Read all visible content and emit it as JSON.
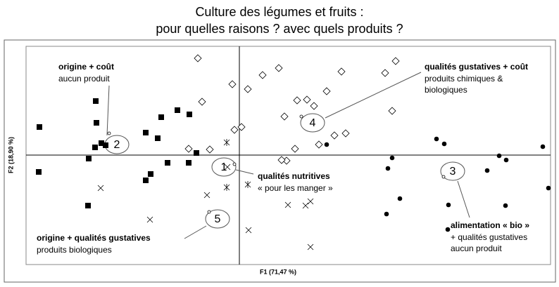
{
  "chart_data": {
    "type": "scatter",
    "title": [
      "Culture des légumes et fruits :",
      "pour quelles raisons ? avec quels produits ?"
    ],
    "xlabel": "F1 (71,47 %)",
    "ylabel": "F2 (18,90 %)",
    "xlim": [
      -30.3,
      44.2
    ],
    "ylim": [
      -15.6,
      15.5
    ],
    "series": [
      {
        "marker": "square",
        "color": "#000000",
        "x": [
          -28.4,
          -28.5,
          -20.4,
          -20.3,
          -20.5,
          -21.4,
          -19.6,
          -19,
          -13.3,
          -11.1,
          -8.8,
          -7.1,
          -11.6,
          -12.6,
          -13.3,
          -10.2,
          -7.2,
          -6.1,
          -21.5
        ],
        "values": [
          4.0,
          -2.4,
          7.7,
          4.6,
          1.1,
          -0.5,
          1.7,
          1.4,
          3.2,
          5.4,
          6.4,
          5.8,
          2.4,
          -2.7,
          -3.6,
          -1.1,
          -1.1,
          0.3,
          -7.2
        ]
      },
      {
        "marker": "diamond-open",
        "color": "#000000",
        "x": [
          -5.9,
          -5.3,
          -7.2,
          -4.2,
          -1,
          -0.7,
          0.3,
          1.2,
          3.3,
          5.6,
          8.2,
          6.4,
          7.9,
          6.7,
          6,
          9.6,
          10.6,
          11.3,
          13.5,
          15.1,
          12.4,
          14.5,
          20.7,
          22.2,
          21.7
        ],
        "values": [
          13.8,
          7.6,
          0.9,
          0.8,
          10.1,
          3.6,
          4.0,
          9.4,
          11.4,
          12.4,
          7.8,
          5.5,
          0.9,
          -0.8,
          -0.7,
          7.9,
          7.0,
          1.5,
          2.8,
          3.1,
          9.1,
          11.9,
          11.7,
          13.4,
          6.3
        ]
      },
      {
        "marker": "circle",
        "color": "#000000",
        "x": [
          12.4,
          21.7,
          21.1,
          28,
          29.1,
          35.2,
          36.9,
          37.9,
          43.1,
          43.9,
          37.8,
          29.7,
          29.6,
          22.8,
          20.9
        ],
        "values": [
          1.5,
          -0.4,
          -1.9,
          2.3,
          1.6,
          -2.2,
          -0.1,
          -0.7,
          1.2,
          -4.7,
          -7.2,
          -7.1,
          -10.6,
          -6.2,
          -8.4
        ]
      },
      {
        "marker": "x",
        "color": "#000000",
        "x": [
          -19.7,
          -12.7,
          -4.6,
          -1.7,
          1.3,
          6.9,
          9.4,
          10.1,
          10.1
        ],
        "values": [
          -4.7,
          -9.2,
          -5.7,
          -1.7,
          -10.7,
          -7.1,
          -7.2,
          -6.6,
          -13.1
        ]
      },
      {
        "marker": "asterisk",
        "color": "#000000",
        "x": [
          -1.8,
          -1.8,
          1.2
        ],
        "values": [
          1.8,
          -4.6,
          -4.2
        ]
      },
      {
        "marker": "circle-open",
        "color": "#000000",
        "x": [
          -18.5,
          -0.7,
          29,
          8.8,
          -4.3
        ],
        "values": [
          3.1,
          -1.3,
          -3.1,
          5.5,
          -8.1
        ]
      }
    ],
    "annotations": [
      {
        "number": "2",
        "title": "origine + coût",
        "lines": [
          "aucun produit"
        ]
      },
      {
        "number": "1",
        "title": "qualités nutritives",
        "lines": [
          "« pour les manger »"
        ]
      },
      {
        "number": "3",
        "title": "alimentation « bio »",
        "lines": [
          "+ qualités gustatives",
          "aucun produit"
        ]
      },
      {
        "number": "4",
        "title": "qualités gustatives + coût",
        "lines": [
          "produits chimiques &",
          "biologiques"
        ]
      },
      {
        "number": "5",
        "title": "origine + qualités gustatives",
        "lines": [
          "produits biologiques"
        ]
      }
    ]
  }
}
